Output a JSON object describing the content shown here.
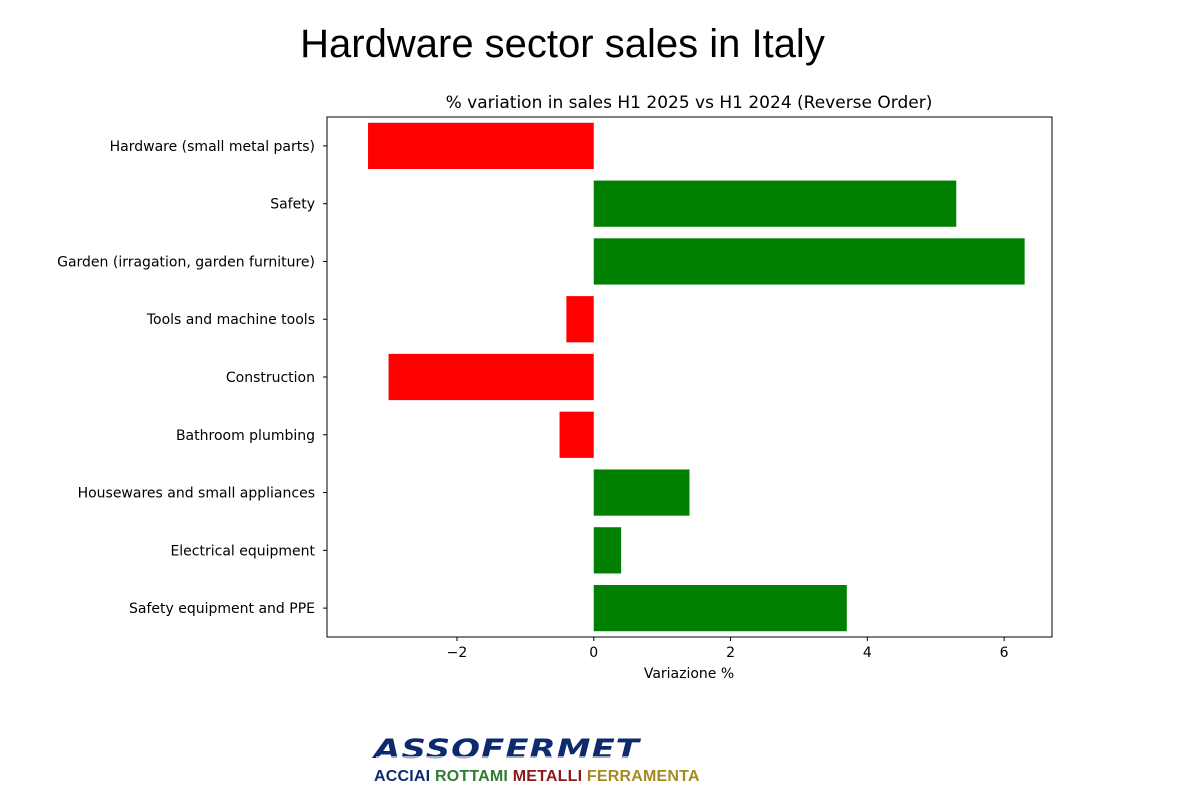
{
  "page": {
    "title": "Hardware sector sales in Italy"
  },
  "colors": {
    "positive": "#008000",
    "negative": "#ff0000",
    "brand_blue": "#0e2a6e"
  },
  "logo": {
    "name": "ASSOFERMET",
    "tagline": [
      "ACCIAI",
      "ROTTAMI",
      "METALLI",
      "FERRAMENTA"
    ]
  },
  "chart_data": {
    "type": "bar",
    "orientation": "horizontal",
    "title": "% variation in sales H1 2025 vs H1 2024 (Reverse Order)",
    "xlabel": "Variazione %",
    "ylabel": "",
    "categories": [
      "Hardware (small metal parts)",
      "Safety",
      "Garden (irragation, garden furniture)",
      "Tools and machine tools",
      "Construction",
      "Bathroom plumbing",
      "Housewares and small appliances",
      "Electrical equipment",
      "Safety equipment and PPE"
    ],
    "values": [
      -3.3,
      5.3,
      6.3,
      -0.4,
      -3.0,
      -0.5,
      1.4,
      0.4,
      3.7
    ],
    "xlim": [
      -3.9,
      6.7
    ],
    "xticks": [
      -2,
      0,
      2,
      4,
      6
    ],
    "xtick_labels": [
      "−2",
      "0",
      "2",
      "4",
      "6"
    ],
    "grid": false
  }
}
